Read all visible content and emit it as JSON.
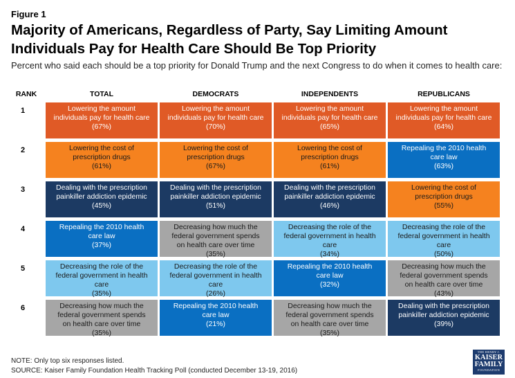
{
  "figure_label": "Figure 1",
  "title_line1": "Majority of Americans, Regardless of Party, Say Limiting Amount",
  "title_line2": "Individuals Pay for Health Care Should Be Top Priority",
  "subtitle": "Percent who said each should be a top priority for Donald Trump and the next Congress to do when it comes to health care:",
  "chart_data": {
    "type": "table",
    "title": "Majority of Americans, Regardless of Party, Say Limiting Amount Individuals Pay for Health Care Should Be Top Priority",
    "subtitle": "Percent who said each should be a top priority for Donald Trump and the next Congress to do when it comes to health care:",
    "columns": [
      "RANK",
      "TOTAL",
      "DEMOCRATS",
      "INDEPENDENTS",
      "REPUBLICANS"
    ],
    "ranks": [
      "1",
      "2",
      "3",
      "4",
      "5",
      "6"
    ],
    "colors": {
      "lowering_amount": "#e05a26",
      "lowering_drugs": "#f5821f",
      "prescription_painkiller": "#1c3a63",
      "repealing": "#0a6fc2",
      "decreasing_role": "#7ec8ee",
      "decreasing_spending": "#a6a6a6"
    },
    "groups": [
      {
        "name": "TOTAL",
        "items": [
          {
            "line1": "Lowering the amount",
            "line2": "individuals pay for health care",
            "line3": "",
            "pct": "(67%)",
            "value": 67,
            "color": "#e05a26",
            "text_color": "#ffffff"
          },
          {
            "line1": "Lowering the cost of",
            "line2": "prescription drugs",
            "line3": "",
            "pct": "(61%)",
            "value": 61,
            "color": "#f5821f",
            "text_color": "#1a1a1a"
          },
          {
            "line1": "Dealing with the prescription",
            "line2": "painkiller addiction epidemic",
            "line3": "",
            "pct": "(45%)",
            "value": 45,
            "color": "#1c3a63",
            "text_color": "#ffffff"
          },
          {
            "line1": "Repealing the 2010 health",
            "line2": "care law",
            "line3": "",
            "pct": "(37%)",
            "value": 37,
            "color": "#0a6fc2",
            "text_color": "#ffffff"
          },
          {
            "line1": "Decreasing the role of the",
            "line2": "federal government in health",
            "line3": "care",
            "pct": "(35%)",
            "value": 35,
            "color": "#7ec8ee",
            "text_color": "#1a1a1a"
          },
          {
            "line1": "Decreasing how much the",
            "line2": "federal government spends",
            "line3": "on health care over time",
            "pct": "(35%)",
            "value": 35,
            "color": "#a6a6a6",
            "text_color": "#1a1a1a"
          }
        ]
      },
      {
        "name": "DEMOCRATS",
        "items": [
          {
            "line1": "Lowering the amount",
            "line2": "individuals pay for health care",
            "line3": "",
            "pct": "(70%)",
            "value": 70,
            "color": "#e05a26",
            "text_color": "#ffffff"
          },
          {
            "line1": "Lowering the cost of",
            "line2": "prescription drugs",
            "line3": "",
            "pct": "(67%)",
            "value": 67,
            "color": "#f5821f",
            "text_color": "#1a1a1a"
          },
          {
            "line1": "Dealing with the prescription",
            "line2": "painkiller addiction epidemic",
            "line3": "",
            "pct": "(51%)",
            "value": 51,
            "color": "#1c3a63",
            "text_color": "#ffffff"
          },
          {
            "line1": "Decreasing how much the",
            "line2": "federal government spends",
            "line3": "on health care over time",
            "pct": "(35%)",
            "value": 35,
            "color": "#a6a6a6",
            "text_color": "#1a1a1a"
          },
          {
            "line1": "Decreasing the role of the",
            "line2": "federal government in health",
            "line3": "care",
            "pct": "(26%)",
            "value": 26,
            "color": "#7ec8ee",
            "text_color": "#1a1a1a"
          },
          {
            "line1": "Repealing the 2010 health",
            "line2": "care law",
            "line3": "",
            "pct": "(21%)",
            "value": 21,
            "color": "#0a6fc2",
            "text_color": "#ffffff"
          }
        ]
      },
      {
        "name": "INDEPENDENTS",
        "items": [
          {
            "line1": "Lowering the amount",
            "line2": "individuals pay for health care",
            "line3": "",
            "pct": "(65%)",
            "value": 65,
            "color": "#e05a26",
            "text_color": "#ffffff"
          },
          {
            "line1": "Lowering the cost of",
            "line2": "prescription drugs",
            "line3": "",
            "pct": "(61%)",
            "value": 61,
            "color": "#f5821f",
            "text_color": "#1a1a1a"
          },
          {
            "line1": "Dealing with the prescription",
            "line2": "painkiller addiction epidemic",
            "line3": "",
            "pct": "(46%)",
            "value": 46,
            "color": "#1c3a63",
            "text_color": "#ffffff"
          },
          {
            "line1": "Decreasing the role of the",
            "line2": "federal government in health",
            "line3": "care",
            "pct": "(34%)",
            "value": 34,
            "color": "#7ec8ee",
            "text_color": "#1a1a1a"
          },
          {
            "line1": "Repealing the 2010 health",
            "line2": "care law",
            "line3": "",
            "pct": "(32%)",
            "value": 32,
            "color": "#0a6fc2",
            "text_color": "#ffffff"
          },
          {
            "line1": "Decreasing how much the",
            "line2": "federal government spends",
            "line3": "on health care over time",
            "pct": "(35%)",
            "value": 35,
            "color": "#a6a6a6",
            "text_color": "#1a1a1a"
          }
        ]
      },
      {
        "name": "REPUBLICANS",
        "items": [
          {
            "line1": "Lowering the amount",
            "line2": "individuals pay for health care",
            "line3": "",
            "pct": "(64%)",
            "value": 64,
            "color": "#e05a26",
            "text_color": "#ffffff"
          },
          {
            "line1": "Repealing the 2010 health",
            "line2": "care law",
            "line3": "",
            "pct": "(63%)",
            "value": 63,
            "color": "#0a6fc2",
            "text_color": "#ffffff"
          },
          {
            "line1": "Lowering the cost of",
            "line2": "prescription drugs",
            "line3": "",
            "pct": "(55%)",
            "value": 55,
            "color": "#f5821f",
            "text_color": "#1a1a1a"
          },
          {
            "line1": "Decreasing the role of the",
            "line2": "federal government in health",
            "line3": "care",
            "pct": "(50%)",
            "value": 50,
            "color": "#7ec8ee",
            "text_color": "#1a1a1a"
          },
          {
            "line1": "Decreasing how much the",
            "line2": "federal government spends",
            "line3": "on health care over time",
            "pct": "(43%)",
            "value": 43,
            "color": "#a6a6a6",
            "text_color": "#1a1a1a"
          },
          {
            "line1": "Dealing with the prescription",
            "line2": "painkiller addiction epidemic",
            "line3": "",
            "pct": "(39%)",
            "value": 39,
            "color": "#1c3a63",
            "text_color": "#ffffff"
          }
        ]
      }
    ]
  },
  "notes": {
    "note": "NOTE: Only top six responses listed.",
    "source": "SOURCE: Kaiser Family Foundation Health Tracking Poll (conducted December 13-19, 2016)"
  },
  "logo": {
    "line1": "THE HENRY J.",
    "line2": "KAISER",
    "line3": "FAMILY",
    "line4": "FOUNDATION"
  }
}
